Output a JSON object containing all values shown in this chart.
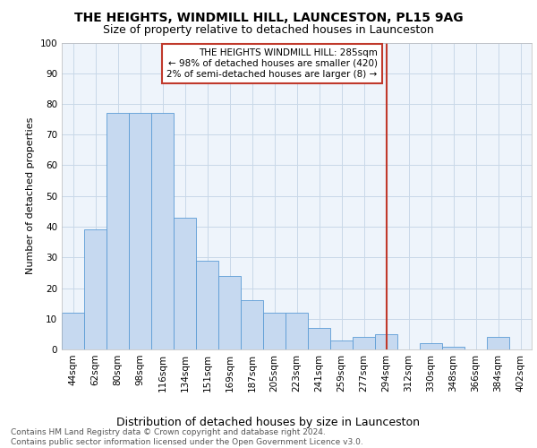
{
  "title1": "THE HEIGHTS, WINDMILL HILL, LAUNCESTON, PL15 9AG",
  "title2": "Size of property relative to detached houses in Launceston",
  "xlabel": "Distribution of detached houses by size in Launceston",
  "ylabel": "Number of detached properties",
  "categories": [
    "44sqm",
    "62sqm",
    "80sqm",
    "98sqm",
    "116sqm",
    "134sqm",
    "151sqm",
    "169sqm",
    "187sqm",
    "205sqm",
    "223sqm",
    "241sqm",
    "259sqm",
    "277sqm",
    "294sqm",
    "312sqm",
    "330sqm",
    "348sqm",
    "366sqm",
    "384sqm",
    "402sqm"
  ],
  "values": [
    12,
    39,
    77,
    77,
    77,
    43,
    29,
    24,
    16,
    12,
    12,
    7,
    3,
    4,
    5,
    0,
    2,
    1,
    0,
    4,
    0
  ],
  "bar_color": "#c6d9f0",
  "bar_edge_color": "#5b9bd5",
  "vline_x_index": 14.0,
  "vline_color": "#c0392b",
  "annotation_text": "THE HEIGHTS WINDMILL HILL: 285sqm\n← 98% of detached houses are smaller (420)\n2% of semi-detached houses are larger (8) →",
  "annotation_box_color": "#c0392b",
  "ylim": [
    0,
    100
  ],
  "yticks": [
    0,
    10,
    20,
    30,
    40,
    50,
    60,
    70,
    80,
    90,
    100
  ],
  "grid_color": "#c8d8e8",
  "background_color": "#eef4fb",
  "footer_text": "Contains HM Land Registry data © Crown copyright and database right 2024.\nContains public sector information licensed under the Open Government Licence v3.0.",
  "title1_fontsize": 10,
  "title2_fontsize": 9,
  "xlabel_fontsize": 9,
  "ylabel_fontsize": 8,
  "tick_fontsize": 7.5,
  "annotation_fontsize": 7.5,
  "footer_fontsize": 6.5
}
